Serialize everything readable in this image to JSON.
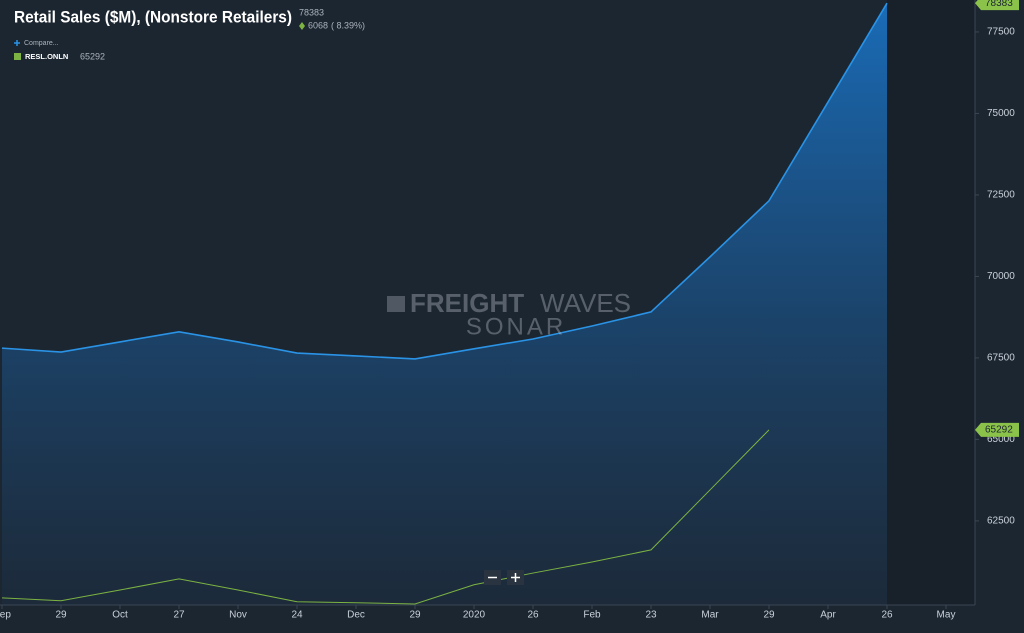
{
  "chart_data": {
    "type": "area",
    "title": "Retail Sales ($M), (Nonstore Retailers)",
    "change": 6068,
    "change_pct": "( 8.39%)",
    "compare_label": "Compare...",
    "categories": [
      "Sep",
      "29",
      "Oct",
      "27",
      "Nov",
      "24",
      "Dec",
      "29",
      "2020",
      "26",
      "Feb",
      "23",
      "Mar",
      "29",
      "Apr",
      "26",
      "May"
    ],
    "series": [
      {
        "color": "#2a93e6",
        "fill": true,
        "values": [
          67800,
          67680,
          67990,
          68300,
          67990,
          67650,
          67560,
          67470,
          67780,
          68080,
          68480,
          68910,
          70600,
          72320,
          75350,
          78383,
          null
        ]
      },
      {
        "name": "RESL.ONLN",
        "color": "#7cb342",
        "fill": false,
        "values": [
          60140,
          60050,
          60380,
          60720,
          60380,
          60020,
          59990,
          59950,
          60540,
          60900,
          61240,
          61610,
          63450,
          65292,
          null,
          null,
          null
        ]
      }
    ],
    "ylim": [
      59920,
      78480
    ],
    "yticks": [
      62500,
      65000,
      67500,
      70000,
      72500,
      75000,
      77500
    ],
    "grid": false
  },
  "watermark": {
    "brand_bold": "FREIGHT",
    "brand_light": "WAVES",
    "product": "SONAR"
  }
}
